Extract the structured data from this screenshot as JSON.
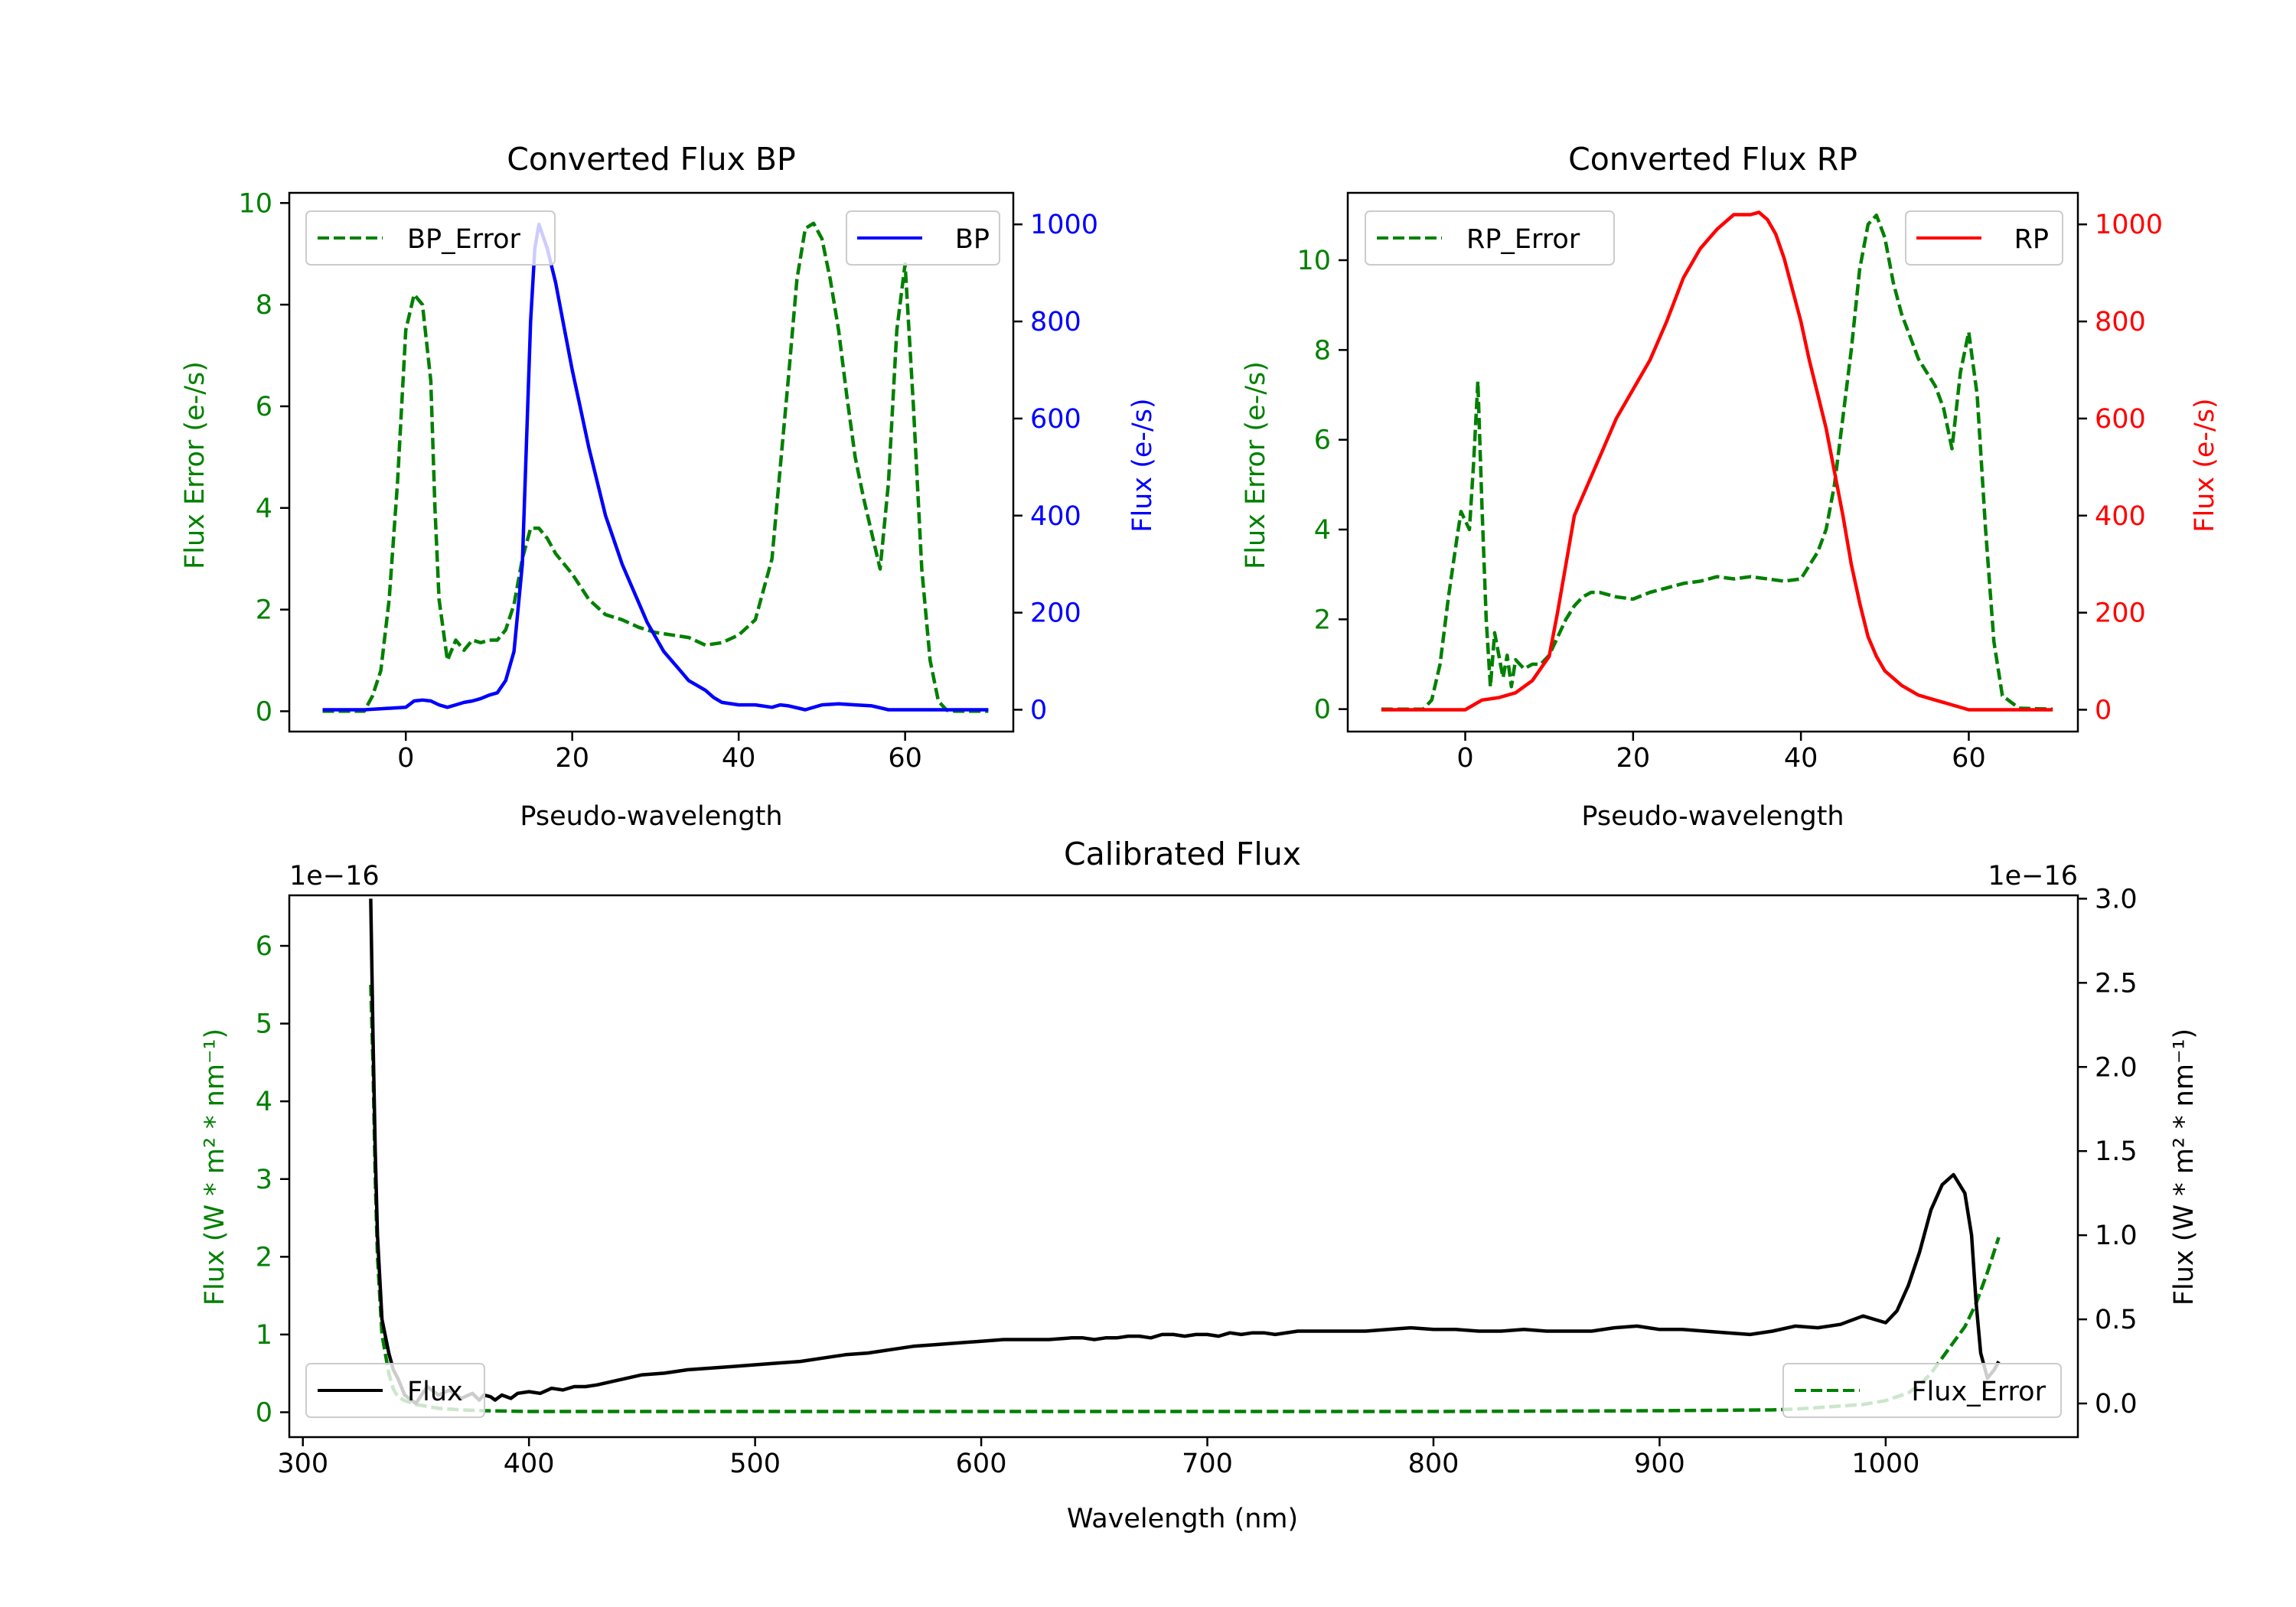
{
  "colors": {
    "green": "#008000",
    "blue": "#0000ff",
    "red": "#ff0000",
    "black": "#000000"
  },
  "chart_data": [
    {
      "id": "bp",
      "type": "line",
      "title": "Converted Flux BP",
      "xlabel": "Pseudo-wavelength",
      "ylabel_left": "Flux Error (e-/s)",
      "ylabel_right": "Flux (e-/s)",
      "xlim": [
        -14,
        73
      ],
      "ylim_left": [
        -0.4,
        10.2
      ],
      "ylim_right": [
        -45,
        1065
      ],
      "xticks": [
        0,
        20,
        40,
        60
      ],
      "yticks_left": [
        0,
        2,
        4,
        6,
        8,
        10
      ],
      "yticks_right": [
        0,
        200,
        400,
        600,
        800,
        1000
      ],
      "legend_left": "BP_Error",
      "legend_right": "BP",
      "series": [
        {
          "name": "BP_Error",
          "axis": "left",
          "color": "#008000",
          "dash": true,
          "x": [
            -10,
            -5,
            -4,
            -3,
            -2,
            -1,
            0,
            1,
            2,
            3,
            3.5,
            4,
            5,
            6,
            7,
            8,
            9,
            10,
            11,
            12,
            13,
            14,
            15,
            16,
            17,
            18,
            20,
            22,
            24,
            26,
            28,
            30,
            32,
            34,
            36,
            38,
            40,
            42,
            44,
            45,
            46,
            47,
            48,
            49,
            50,
            51,
            52,
            53,
            54,
            55,
            56,
            57,
            58,
            59,
            60,
            61,
            62,
            63,
            64,
            65,
            66,
            70
          ],
          "y": [
            0,
            0,
            0.3,
            0.8,
            2.2,
            4.5,
            7.5,
            8.2,
            8.0,
            6.5,
            4.0,
            2.2,
            1.0,
            1.4,
            1.2,
            1.4,
            1.35,
            1.4,
            1.4,
            1.6,
            2.1,
            3.0,
            3.6,
            3.6,
            3.4,
            3.1,
            2.7,
            2.2,
            1.9,
            1.8,
            1.65,
            1.55,
            1.5,
            1.45,
            1.3,
            1.35,
            1.5,
            1.8,
            3.0,
            4.8,
            6.6,
            8.5,
            9.5,
            9.6,
            9.3,
            8.5,
            7.5,
            6.2,
            5.0,
            4.2,
            3.5,
            2.8,
            4.5,
            7.5,
            8.8,
            6.0,
            2.8,
            1.0,
            0.2,
            0.02,
            0,
            0
          ]
        },
        {
          "name": "BP",
          "axis": "right",
          "color": "#0000ff",
          "dash": false,
          "x": [
            -10,
            -5,
            0,
            1,
            2,
            3,
            4,
            5,
            6,
            7,
            8,
            9,
            10,
            11,
            12,
            13,
            14,
            15,
            15.5,
            16,
            17,
            18,
            19,
            20,
            21,
            22,
            23,
            24,
            25,
            26,
            27,
            28,
            29,
            30,
            31,
            32,
            33,
            34,
            35,
            36,
            37,
            38,
            40,
            42,
            44,
            45,
            46,
            48,
            50,
            52,
            54,
            56,
            58,
            60,
            62,
            65,
            70
          ],
          "y": [
            0,
            0,
            5,
            18,
            20,
            18,
            10,
            5,
            10,
            15,
            18,
            23,
            30,
            35,
            60,
            120,
            300,
            800,
            950,
            1000,
            950,
            880,
            790,
            700,
            620,
            540,
            470,
            400,
            350,
            300,
            260,
            220,
            180,
            150,
            120,
            100,
            80,
            60,
            50,
            40,
            25,
            15,
            10,
            10,
            5,
            10,
            8,
            0,
            10,
            12,
            10,
            8,
            0,
            0,
            0,
            0,
            0
          ]
        }
      ]
    },
    {
      "id": "rp",
      "type": "line",
      "title": "Converted Flux RP",
      "xlabel": "Pseudo-wavelength",
      "ylabel_left": "Flux Error (e-/s)",
      "ylabel_right": "Flux (e-/s)",
      "xlim": [
        -14,
        73
      ],
      "ylim_left": [
        -0.5,
        11.5
      ],
      "ylim_right": [
        -45,
        1065
      ],
      "xticks": [
        0,
        20,
        40,
        60
      ],
      "yticks_left": [
        0,
        2,
        4,
        6,
        8,
        10
      ],
      "yticks_right": [
        0,
        200,
        400,
        600,
        800,
        1000
      ],
      "legend_left": "RP_Error",
      "legend_right": "RP",
      "series": [
        {
          "name": "RP_Error",
          "axis": "left",
          "color": "#008000",
          "dash": true,
          "x": [
            -10,
            -5,
            -4,
            -3,
            -2,
            -1,
            -0.5,
            0,
            0.5,
            1,
            1.5,
            2,
            2.5,
            3,
            3.5,
            4,
            4.5,
            5,
            5.5,
            6,
            7,
            8,
            9,
            10,
            11,
            12,
            13,
            14,
            15,
            16,
            18,
            20,
            22,
            24,
            26,
            28,
            30,
            32,
            34,
            36,
            38,
            40,
            42,
            43,
            44,
            45,
            46,
            47,
            48,
            49,
            50,
            51,
            52,
            53,
            54,
            55,
            56,
            57,
            58,
            59,
            60,
            61,
            62,
            63,
            64,
            66,
            70
          ],
          "y": [
            0,
            0,
            0.2,
            1.0,
            2.5,
            3.8,
            4.4,
            4.2,
            4.0,
            5.5,
            7.3,
            4.5,
            2.0,
            0.5,
            1.7,
            1.2,
            0.7,
            1.2,
            0.5,
            1.1,
            0.9,
            1.0,
            1.0,
            1.2,
            1.6,
            2.0,
            2.3,
            2.5,
            2.6,
            2.6,
            2.5,
            2.45,
            2.6,
            2.7,
            2.8,
            2.85,
            2.95,
            2.9,
            2.95,
            2.9,
            2.85,
            2.9,
            3.5,
            4.0,
            5.0,
            6.5,
            8.0,
            9.8,
            10.8,
            11.0,
            10.5,
            9.5,
            8.8,
            8.3,
            7.8,
            7.5,
            7.2,
            6.7,
            5.8,
            7.5,
            8.4,
            7.0,
            4.0,
            1.5,
            0.3,
            0.02,
            0
          ]
        },
        {
          "name": "RP",
          "axis": "right",
          "color": "#ff0000",
          "dash": false,
          "x": [
            -10,
            -5,
            -2,
            0,
            2,
            4,
            6,
            8,
            10,
            11,
            12,
            13,
            14,
            16,
            18,
            20,
            22,
            24,
            26,
            28,
            30,
            32,
            34,
            35,
            36,
            37,
            38,
            40,
            41,
            42,
            43,
            44,
            45,
            46,
            47,
            48,
            49,
            50,
            52,
            54,
            56,
            58,
            60,
            62,
            64,
            66,
            70
          ],
          "y": [
            0,
            0,
            0,
            0,
            20,
            25,
            35,
            60,
            110,
            200,
            300,
            400,
            440,
            520,
            600,
            660,
            720,
            800,
            890,
            950,
            990,
            1020,
            1020,
            1025,
            1010,
            980,
            930,
            800,
            720,
            650,
            580,
            490,
            400,
            300,
            220,
            150,
            110,
            80,
            50,
            30,
            20,
            10,
            0,
            0,
            0,
            0,
            0
          ]
        }
      ]
    },
    {
      "id": "calibrated",
      "type": "line",
      "title": "Calibrated Flux",
      "xlabel": "Wavelength (nm)",
      "ylabel_left": "Flux (W * m² * nm⁻¹)",
      "ylabel_right": "Flux (W * m² * nm⁻¹)",
      "offset_left": "1e−16",
      "offset_right": "1e−16",
      "xlim": [
        294,
        1085
      ],
      "ylim_left": [
        -0.32,
        6.65
      ],
      "ylim_right": [
        -0.2,
        3.02
      ],
      "xticks": [
        300,
        400,
        500,
        600,
        700,
        800,
        900,
        1000
      ],
      "yticks_left": [
        0,
        1,
        2,
        3,
        4,
        5,
        6
      ],
      "yticks_right": [
        "0.0",
        "0.5",
        "1.0",
        "1.5",
        "2.0",
        "2.5",
        "3.0"
      ],
      "legend_left": "Flux",
      "legend_right": "Flux_Error",
      "series": [
        {
          "name": "Flux",
          "axis": "right",
          "color": "#000000",
          "dash": false,
          "x": [
            330,
            331,
            332,
            333,
            335,
            338,
            340,
            342,
            345,
            348,
            350,
            355,
            360,
            365,
            370,
            375,
            378,
            380,
            383,
            385,
            388,
            392,
            395,
            400,
            405,
            410,
            415,
            420,
            425,
            430,
            440,
            450,
            460,
            470,
            480,
            490,
            500,
            510,
            520,
            530,
            540,
            550,
            560,
            570,
            580,
            590,
            600,
            610,
            620,
            630,
            640,
            645,
            650,
            655,
            660,
            665,
            670,
            675,
            680,
            685,
            690,
            695,
            700,
            705,
            710,
            715,
            720,
            725,
            730,
            740,
            750,
            760,
            770,
            780,
            790,
            800,
            810,
            820,
            830,
            840,
            850,
            860,
            870,
            880,
            890,
            900,
            910,
            920,
            930,
            940,
            950,
            960,
            970,
            980,
            990,
            995,
            1000,
            1005,
            1010,
            1015,
            1020,
            1025,
            1030,
            1035,
            1038,
            1040,
            1042,
            1045,
            1048,
            1050
          ],
          "y": [
            3.0,
            2.2,
            1.5,
            1.0,
            0.5,
            0.3,
            0.2,
            0.15,
            0.05,
            0.02,
            0.0,
            0.1,
            0.05,
            0.08,
            0.03,
            0.06,
            0.02,
            0.05,
            0.04,
            0.02,
            0.05,
            0.03,
            0.06,
            0.07,
            0.06,
            0.09,
            0.08,
            0.1,
            0.1,
            0.11,
            0.14,
            0.17,
            0.18,
            0.2,
            0.21,
            0.22,
            0.23,
            0.24,
            0.25,
            0.27,
            0.29,
            0.3,
            0.32,
            0.34,
            0.35,
            0.36,
            0.37,
            0.38,
            0.38,
            0.38,
            0.39,
            0.39,
            0.38,
            0.39,
            0.39,
            0.4,
            0.4,
            0.39,
            0.41,
            0.41,
            0.4,
            0.41,
            0.41,
            0.4,
            0.42,
            0.41,
            0.42,
            0.42,
            0.41,
            0.43,
            0.43,
            0.43,
            0.43,
            0.44,
            0.45,
            0.44,
            0.44,
            0.43,
            0.43,
            0.44,
            0.43,
            0.43,
            0.43,
            0.45,
            0.46,
            0.44,
            0.44,
            0.43,
            0.42,
            0.41,
            0.43,
            0.46,
            0.45,
            0.47,
            0.52,
            0.5,
            0.48,
            0.55,
            0.7,
            0.9,
            1.15,
            1.3,
            1.36,
            1.25,
            1.0,
            0.6,
            0.3,
            0.15,
            0.2,
            0.25
          ]
        },
        {
          "name": "Flux_Error",
          "axis": "left",
          "color": "#008000",
          "dash": true,
          "x": [
            330,
            331,
            332,
            333,
            335,
            338,
            340,
            342,
            345,
            350,
            360,
            370,
            380,
            390,
            400,
            450,
            500,
            600,
            700,
            800,
            900,
            950,
            960,
            970,
            980,
            990,
            1000,
            1010,
            1015,
            1020,
            1025,
            1030,
            1035,
            1040,
            1045,
            1050
          ],
          "y": [
            5.5,
            4.5,
            3.0,
            2.0,
            1.0,
            0.5,
            0.3,
            0.2,
            0.15,
            0.1,
            0.05,
            0.03,
            0.02,
            0.015,
            0.01,
            0.01,
            0.01,
            0.01,
            0.01,
            0.01,
            0.02,
            0.03,
            0.04,
            0.06,
            0.08,
            0.1,
            0.15,
            0.25,
            0.35,
            0.5,
            0.7,
            0.9,
            1.1,
            1.4,
            1.8,
            2.25
          ]
        }
      ]
    }
  ]
}
